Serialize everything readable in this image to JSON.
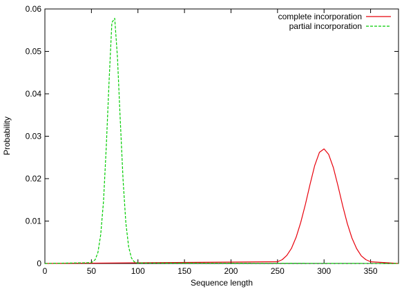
{
  "chart_data": {
    "type": "line",
    "xlabel": "Sequence length",
    "ylabel": "Probability",
    "xlim": [
      0,
      380
    ],
    "ylim": [
      0,
      0.06
    ],
    "x_ticks": [
      0,
      50,
      100,
      150,
      200,
      250,
      300,
      350
    ],
    "y_ticks": [
      0,
      0.01,
      0.02,
      0.03,
      0.04,
      0.05,
      0.06
    ],
    "y_tick_labels": [
      "0",
      "0.01",
      "0.02",
      "0.03",
      "0.04",
      "0.05",
      "0.06"
    ],
    "grid": false,
    "legend_position": "top-right",
    "series": [
      {
        "name": "complete incorporation",
        "color": "#e8000b",
        "dash": "solid",
        "x": [
          0,
          250,
          255,
          260,
          265,
          270,
          275,
          280,
          285,
          290,
          295,
          300,
          305,
          310,
          315,
          320,
          325,
          330,
          335,
          340,
          345,
          350,
          380
        ],
        "y": [
          0,
          0.0004,
          0.0009,
          0.0019,
          0.0036,
          0.0062,
          0.0097,
          0.014,
          0.0187,
          0.0231,
          0.0262,
          0.027,
          0.0257,
          0.0226,
          0.0183,
          0.0136,
          0.0094,
          0.006,
          0.0035,
          0.0018,
          0.0009,
          0.0004,
          0
        ]
      },
      {
        "name": "partial incorporation",
        "color": "#00cc00",
        "dash": "dashed",
        "x": [
          0,
          50,
          54,
          57,
          60,
          63,
          66,
          69,
          72,
          75,
          78,
          81,
          84,
          87,
          90,
          93,
          96,
          100,
          380
        ],
        "y": [
          0,
          0.0002,
          0.0009,
          0.0026,
          0.0068,
          0.0147,
          0.0276,
          0.0432,
          0.0568,
          0.0578,
          0.0485,
          0.0339,
          0.0197,
          0.0096,
          0.0039,
          0.0013,
          0.0004,
          0.0001,
          0
        ]
      }
    ]
  }
}
